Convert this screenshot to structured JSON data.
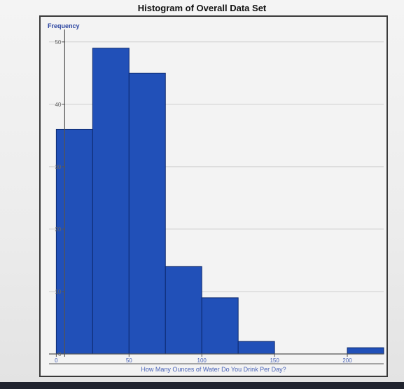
{
  "chart_data": {
    "type": "bar",
    "title": "Histogram of Overall Data Set",
    "ylabel": "Frequency",
    "xlabel": "How Many Ounces of Water Do You Drink Per Day?",
    "x_ticks": [
      0,
      50,
      100,
      150,
      200
    ],
    "y_ticks": [
      0,
      10,
      20,
      30,
      40,
      50
    ],
    "xlim": [
      -5,
      225
    ],
    "ylim": [
      0,
      52
    ],
    "grid": true,
    "bins": [
      {
        "start": 0,
        "end": 25,
        "value": 36
      },
      {
        "start": 25,
        "end": 50,
        "value": 49
      },
      {
        "start": 50,
        "end": 75,
        "value": 45
      },
      {
        "start": 75,
        "end": 100,
        "value": 14
      },
      {
        "start": 100,
        "end": 125,
        "value": 9
      },
      {
        "start": 125,
        "end": 150,
        "value": 2
      },
      {
        "start": 200,
        "end": 225,
        "value": 1
      }
    ],
    "colors": {
      "bar": "#2150b8",
      "bar_edge": "#0d2a70"
    }
  }
}
